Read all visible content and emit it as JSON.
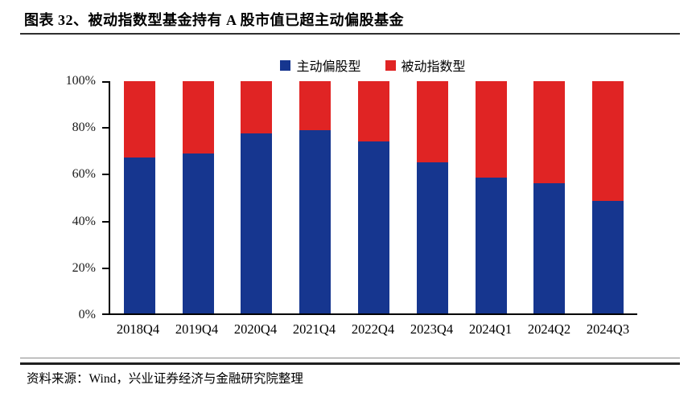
{
  "header": {
    "title": "图表 32、被动指数型基金持有 A 股市值已超主动偏股基金"
  },
  "chart_data": {
    "type": "bar",
    "stacked": true,
    "orientation": "vertical",
    "categories": [
      "2018Q4",
      "2019Q4",
      "2020Q4",
      "2021Q4",
      "2022Q4",
      "2023Q4",
      "2024Q1",
      "2024Q2",
      "2024Q3"
    ],
    "series": [
      {
        "name": "主动偏股型",
        "color": "#16368f",
        "values": [
          67,
          69,
          77.5,
          79,
          74,
          65,
          58.5,
          56,
          48.5
        ]
      },
      {
        "name": "被动指数型",
        "color": "#e02424",
        "values": [
          33,
          31,
          22.5,
          21,
          26,
          35,
          41.5,
          44,
          51.5
        ]
      }
    ],
    "title": "",
    "xlabel": "",
    "ylabel": "",
    "ylim": [
      0,
      100
    ],
    "y_tick_labels": [
      "0%",
      "20%",
      "40%",
      "60%",
      "80%",
      "100%"
    ],
    "grid": false,
    "legend_position": "top-center",
    "axis_color": "#000000"
  },
  "footer": {
    "source": "资料来源：Wind，兴业证券经济与金融研究院整理"
  }
}
